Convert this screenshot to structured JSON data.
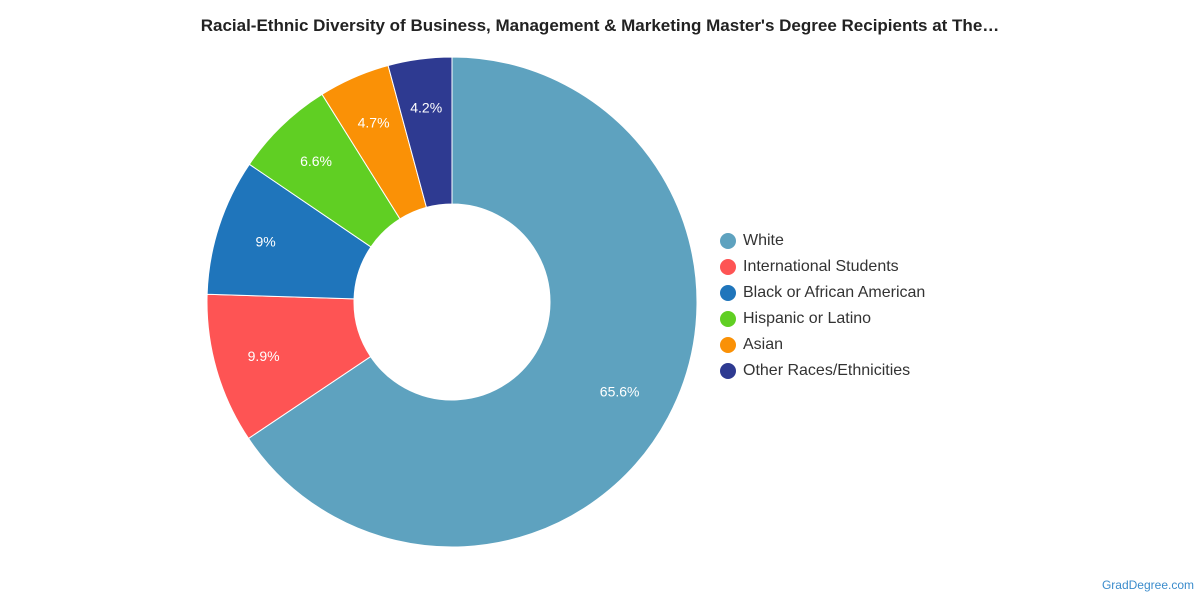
{
  "chart_data": {
    "type": "pie",
    "title": "Racial-Ethnic Diversity of Business, Management & Marketing Master's Degree Recipients at The…",
    "donut": true,
    "legend_position": "right",
    "slices": [
      {
        "name": "White",
        "value": 65.6,
        "label": "65.6%",
        "color": "#5ea2bf"
      },
      {
        "name": "International Students",
        "value": 9.9,
        "label": "9.9%",
        "color": "#fe5454"
      },
      {
        "name": "Black or African American",
        "value": 9,
        "label": "9%",
        "color": "#1f75bb"
      },
      {
        "name": "Hispanic or Latino",
        "value": 6.6,
        "label": "6.6%",
        "color": "#60cf23"
      },
      {
        "name": "Asian",
        "value": 4.7,
        "label": "4.7%",
        "color": "#fa9106"
      },
      {
        "name": "Other Races/Ethnicities",
        "value": 4.2,
        "label": "4.2%",
        "color": "#2e3a91"
      }
    ]
  },
  "watermark": "GradDegree.com"
}
